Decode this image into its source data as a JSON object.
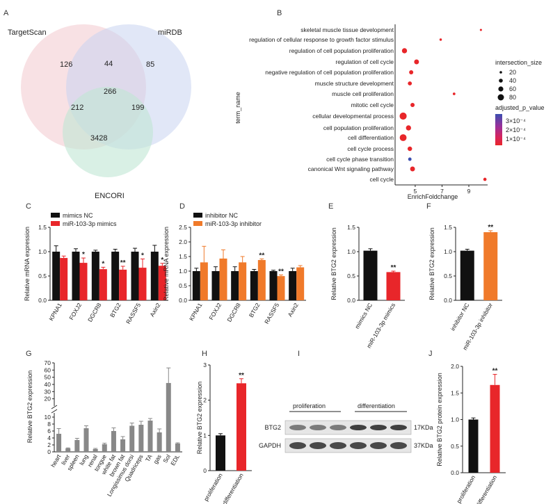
{
  "panel_letters": [
    "A",
    "B",
    "C",
    "D",
    "E",
    "F",
    "G",
    "H",
    "I",
    "J"
  ],
  "colors": {
    "black": "#111111",
    "red": "#e8262a",
    "orange": "#f07a2a",
    "gray": "#888888",
    "venn_pink": "#f3c9ce",
    "venn_blue": "#c9d3f0",
    "venn_green": "#bfe6d3",
    "targetscan": "#d9534f",
    "mirdb": "#3ba3c9",
    "encori": "#3daa7a"
  },
  "venn": {
    "labels": {
      "a": "TargetScan",
      "b": "miRDB",
      "c": "ENCORI"
    },
    "counts": {
      "a_only": "126",
      "ab": "44",
      "b_only": "85",
      "abc": "266",
      "ac": "212",
      "bc": "199",
      "c_only": "3428"
    }
  },
  "enrich": {
    "ylabel": "term_name",
    "xlabel": "EnrichFoldchange",
    "x_ticks": [
      "5",
      "7",
      "9"
    ],
    "legend_size_title": "intersection_size",
    "legend_sizes": [
      "20",
      "40",
      "60",
      "80"
    ],
    "legend_color_title": "adjusted_p_value",
    "legend_colors": [
      "3×10⁻⁴",
      "2×10⁻⁴",
      "1×10⁻⁴"
    ],
    "terms": [
      "skeletal muscle tissue development",
      "regulation of cellular response to growth factor stimulus",
      "regulation of cell population proliferation",
      "regulation of cell cycle",
      "negative regulation of cell population proliferation",
      "muscle structure development",
      "muscle cell proliferation",
      "mitotic cell cycle",
      "cellular developmental process",
      "cell population proliferation",
      "cell differentiation",
      "cell cycle process",
      "cell cycle phase transition",
      "canonical Wnt signaling pathway",
      "cell cycle"
    ]
  },
  "chart_data": [
    {
      "id": "A",
      "type": "venn",
      "sets": [
        "TargetScan",
        "miRDB",
        "ENCORI"
      ],
      "values": {
        "TargetScan only": 126,
        "TargetScan∩miRDB": 44,
        "miRDB only": 85,
        "all three": 266,
        "TargetScan∩ENCORI": 212,
        "miRDB∩ENCORI": 199,
        "ENCORI only": 3428
      }
    },
    {
      "id": "B",
      "type": "scatter",
      "xlabel": "EnrichFoldchange",
      "ylabel": "term_name",
      "xlim": [
        3.5,
        10.4
      ],
      "points": [
        {
          "term": "skeletal muscle tissue development",
          "x": 9.9,
          "size": 8,
          "p": 5e-05
        },
        {
          "term": "regulation of cellular response to growth factor stimulus",
          "x": 6.9,
          "size": 10,
          "p": 5e-05
        },
        {
          "term": "regulation of cell population proliferation",
          "x": 4.2,
          "size": 45,
          "p": 8e-05
        },
        {
          "term": "regulation of cell cycle",
          "x": 5.1,
          "size": 40,
          "p": 6e-05
        },
        {
          "term": "negative regulation of cell population proliferation",
          "x": 4.7,
          "size": 30,
          "p": 6e-05
        },
        {
          "term": "muscle structure development",
          "x": 4.6,
          "size": 28,
          "p": 5e-05
        },
        {
          "term": "muscle cell proliferation",
          "x": 7.9,
          "size": 12,
          "p": 5e-05
        },
        {
          "term": "mitotic cell cycle",
          "x": 4.8,
          "size": 30,
          "p": 6e-05
        },
        {
          "term": "cellular developmental process",
          "x": 4.1,
          "size": 85,
          "p": 5e-05
        },
        {
          "term": "cell population proliferation",
          "x": 4.5,
          "size": 45,
          "p": 5e-05
        },
        {
          "term": "cell differentiation",
          "x": 4.1,
          "size": 80,
          "p": 5e-05
        },
        {
          "term": "cell cycle process",
          "x": 4.6,
          "size": 35,
          "p": 8e-05
        },
        {
          "term": "cell cycle phase transition",
          "x": 4.6,
          "size": 20,
          "p": 0.0003
        },
        {
          "term": "canonical Wnt signaling pathway",
          "x": 4.8,
          "size": 40,
          "p": 6e-05
        },
        {
          "term": "cell cycle",
          "x": 10.2,
          "size": 18,
          "p": 5e-05
        }
      ]
    },
    {
      "id": "C",
      "type": "bar",
      "ylabel": "Relative mRNA expression",
      "ylim": [
        0,
        1.5
      ],
      "y_ticks": [
        "0.0",
        "0.5",
        "1.0",
        "1.5"
      ],
      "categories": [
        "KPNA1",
        "FOXJ2",
        "DGCR8",
        "BTG2",
        "RASSF5",
        "Axin2"
      ],
      "series": [
        {
          "name": "mimics NC",
          "values": [
            1.0,
            1.0,
            1.0,
            1.0,
            1.0,
            1.0
          ],
          "err": [
            0.12,
            0.06,
            0.03,
            0.05,
            0.07,
            0.13
          ]
        },
        {
          "name": "miR-103-3p mimics",
          "values": [
            0.87,
            0.77,
            0.64,
            0.63,
            0.67,
            0.71
          ],
          "err": [
            0.04,
            0.1,
            0.04,
            0.07,
            0.18,
            0.05
          ]
        }
      ],
      "sig": [
        "",
        "*",
        "*",
        "**",
        "*",
        "*"
      ]
    },
    {
      "id": "D",
      "type": "bar",
      "ylabel": "Relative mRNA expression",
      "ylim": [
        0,
        2.5
      ],
      "y_ticks": [
        "0.0",
        "0.5",
        "1.0",
        "1.5",
        "2.0",
        "2.5"
      ],
      "categories": [
        "KPNA1",
        "FOXJ2",
        "DGCR8",
        "BTG2",
        "RASSF5",
        "Axin2"
      ],
      "series": [
        {
          "name": "inhibitor NC",
          "values": [
            1.0,
            1.0,
            1.0,
            1.0,
            1.0,
            1.0
          ],
          "err": [
            0.1,
            0.15,
            0.15,
            0.06,
            0.03,
            0.1
          ]
        },
        {
          "name": "miR-103-3p inhibitor",
          "values": [
            1.3,
            1.43,
            1.3,
            1.38,
            0.83,
            1.13
          ],
          "err": [
            0.55,
            0.3,
            0.2,
            0.04,
            0.04,
            0.06
          ]
        }
      ],
      "sig": [
        "",
        "",
        "",
        "**",
        "**",
        ""
      ]
    },
    {
      "id": "E",
      "type": "bar",
      "ylabel": "Relative BTG2 expression",
      "ylim": [
        0,
        1.5
      ],
      "y_ticks": [
        "0.0",
        "0.5",
        "1.0",
        "1.5"
      ],
      "categories": [
        "mimics NC",
        "miR-103-3p mimics"
      ],
      "values": [
        1.02,
        0.58
      ],
      "err": [
        0.04,
        0.02
      ],
      "sig": [
        "",
        "**"
      ]
    },
    {
      "id": "F",
      "type": "bar",
      "ylabel": "Relative BTG2 expression",
      "ylim": [
        0,
        1.5
      ],
      "y_ticks": [
        "0.0",
        "0.5",
        "1.0",
        "1.5"
      ],
      "categories": [
        "inhibitor NC",
        "miR-103-3p inhibitor"
      ],
      "values": [
        1.02,
        1.4
      ],
      "err": [
        0.03,
        0.03
      ],
      "sig": [
        "",
        "**"
      ]
    },
    {
      "id": "G",
      "type": "bar",
      "ylabel": "Relative BTG2 expression",
      "y_ticks": [
        "0",
        "2",
        "4",
        "6",
        "8",
        "10",
        "20",
        "30",
        "40",
        "50",
        "60",
        "70"
      ],
      "categories": [
        "heart",
        "liver",
        "spleen",
        "lung",
        "renal",
        "tongue",
        "white fat",
        "brown fat",
        "Longissimus dorsi",
        "Quadriceps",
        "TA",
        "gas",
        "Sol",
        "EDL"
      ],
      "values": [
        5.2,
        1.0,
        3.4,
        6.8,
        0.8,
        2.2,
        6.0,
        3.6,
        7.5,
        7.8,
        9.0,
        5.6,
        42,
        2.4
      ],
      "err": [
        1.5,
        0.15,
        0.5,
        0.7,
        0.2,
        0.3,
        0.9,
        0.8,
        0.8,
        1.0,
        0.6,
        1.0,
        21,
        0.2
      ]
    },
    {
      "id": "H",
      "type": "bar",
      "ylabel": "Relative BTG2 expression",
      "ylim": [
        0,
        3
      ],
      "y_ticks": [
        "0",
        "1",
        "2",
        "3"
      ],
      "categories": [
        "proliferation",
        "differentiation"
      ],
      "values": [
        1.0,
        2.48
      ],
      "err": [
        0.05,
        0.13
      ],
      "sig": [
        "",
        "**"
      ]
    },
    {
      "id": "J",
      "type": "bar",
      "ylabel": "Relative BTG2 protein expression",
      "ylim": [
        0,
        2.0
      ],
      "y_ticks": [
        "0.0",
        "0.5",
        "1.0",
        "1.5",
        "2.0"
      ],
      "categories": [
        "proliferation",
        "differentiation"
      ],
      "values": [
        1.0,
        1.65
      ],
      "err": [
        0.03,
        0.2
      ],
      "sig": [
        "",
        "**"
      ]
    }
  ],
  "western": {
    "groups": [
      "proliferation",
      "differentiation"
    ],
    "rows": [
      "BTG2",
      "GAPDH"
    ],
    "sizes": [
      "17KDa",
      "37KDa"
    ]
  }
}
